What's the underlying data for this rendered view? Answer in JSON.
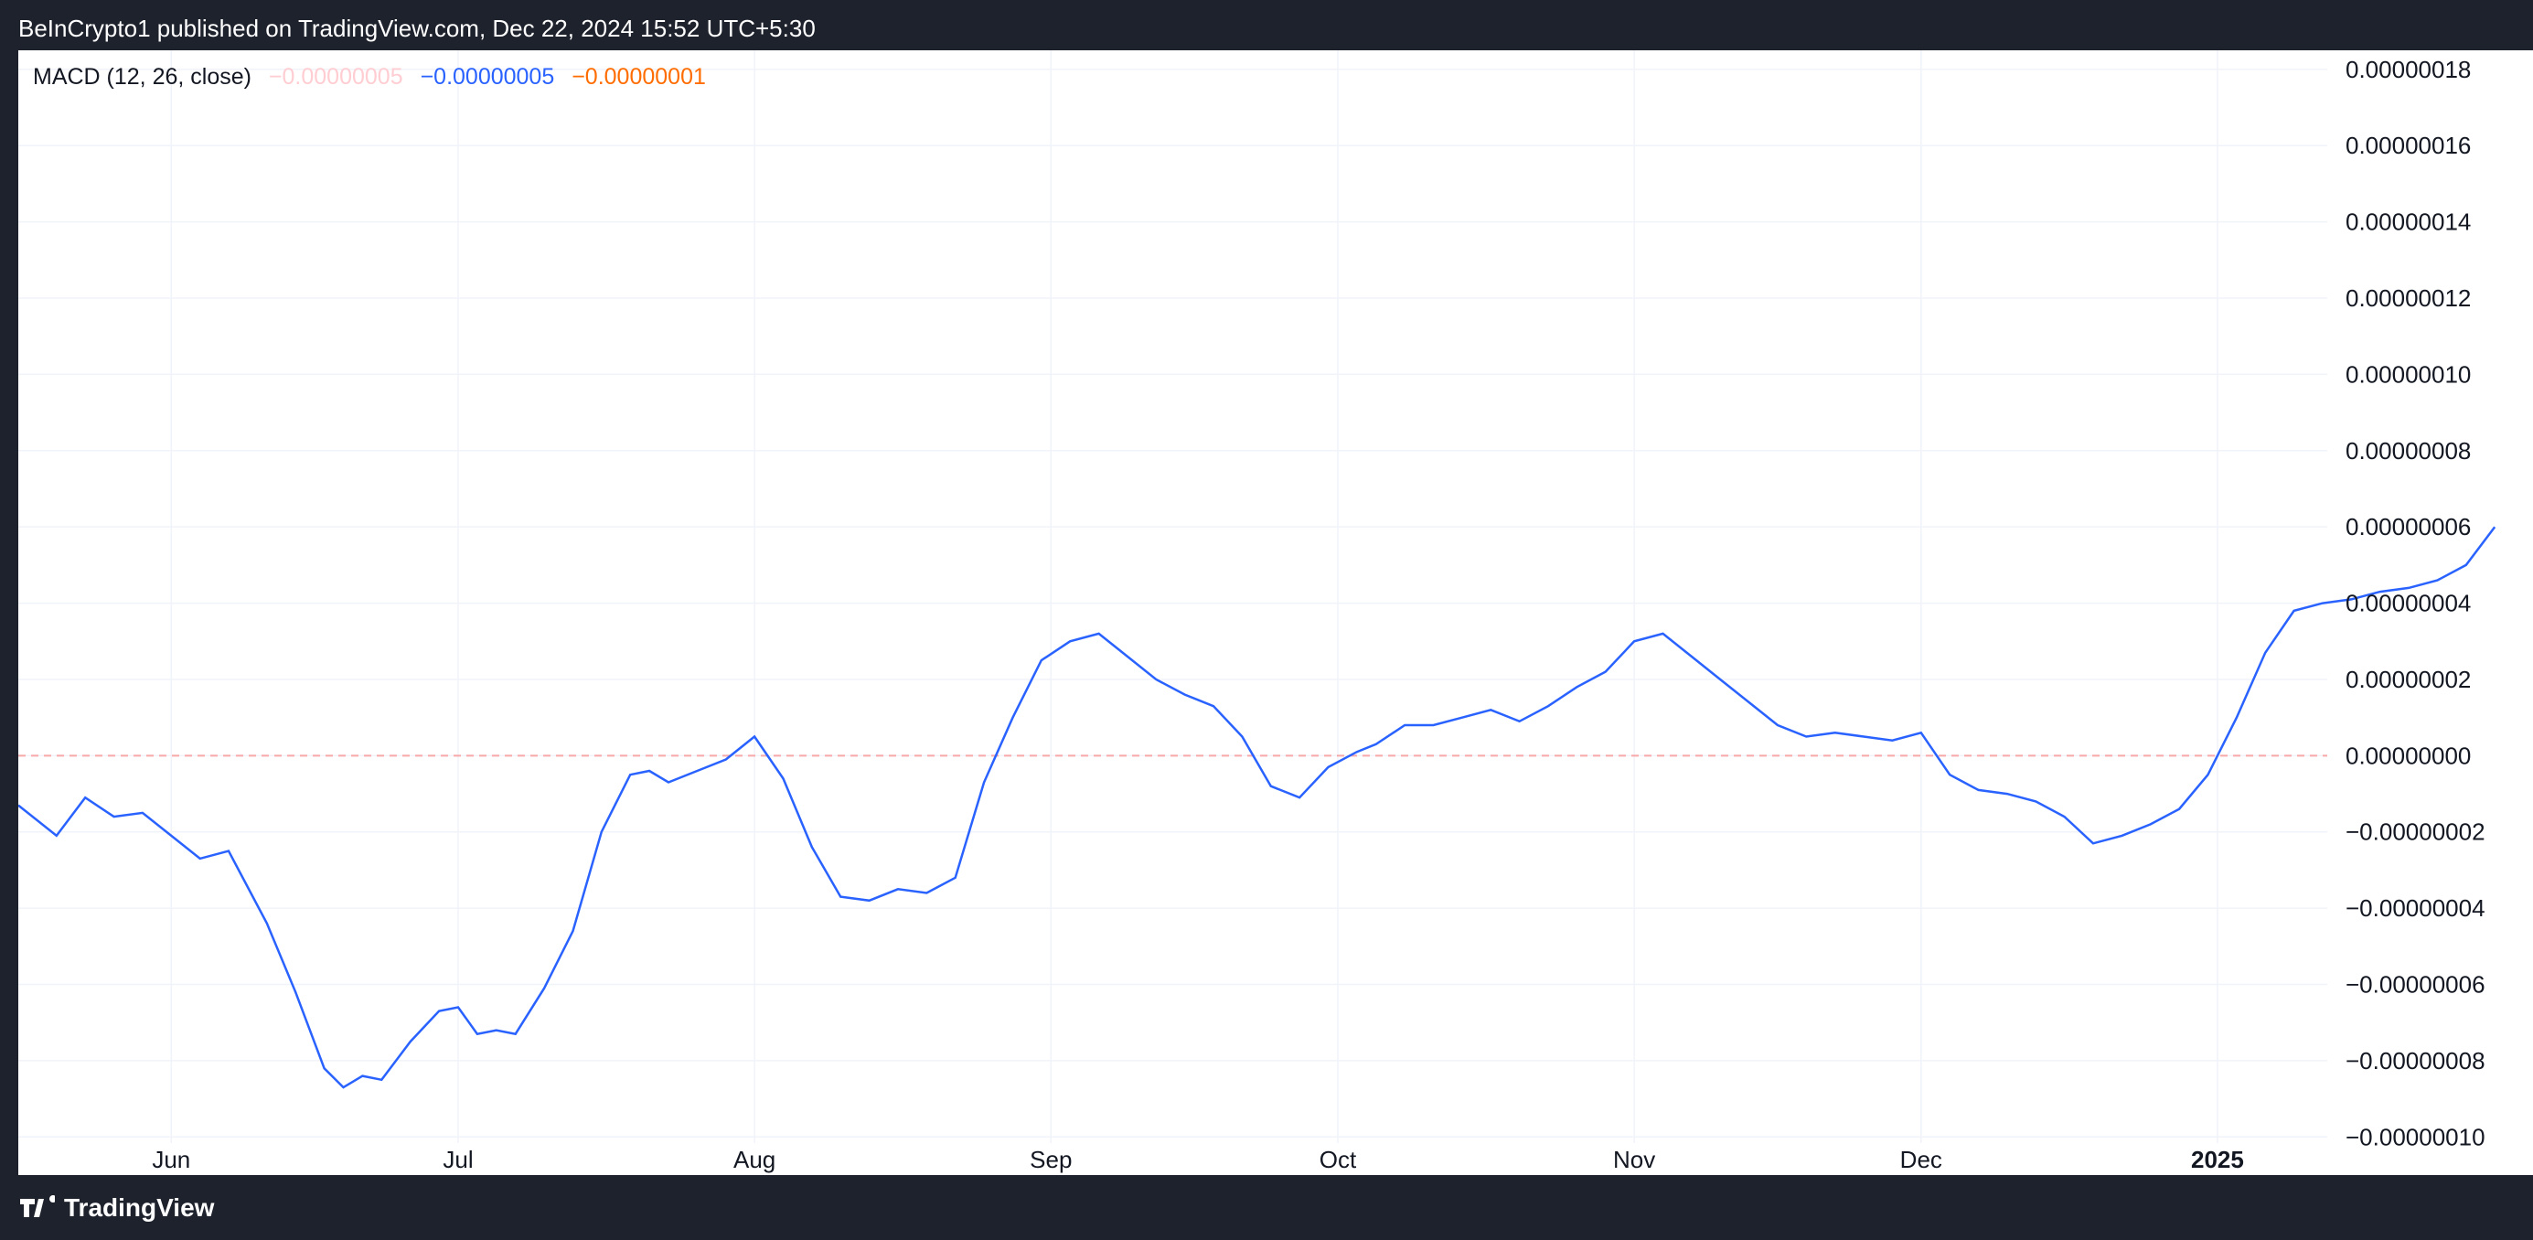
{
  "header": {
    "publisher_text": "BeInCrypto1 published on TradingView.com, Dec 22, 2024 15:52 UTC+5:30"
  },
  "legend": {
    "indicator": "MACD (12, 26, close)",
    "histogram_value": "−0.00000005",
    "macd_value": "−0.00000005",
    "signal_value": "−0.00000001"
  },
  "footer": {
    "brand": "TradingView"
  },
  "colors": {
    "macd_line": "#2962ff",
    "signal_line": "#ff6d00",
    "hist_pos_strong": "#26a69a",
    "hist_pos_weak": "#b2dfdb",
    "hist_neg_strong": "#ff5252",
    "hist_neg_weak": "#ffcdd2"
  },
  "chart_data": {
    "type": "line",
    "title": "MACD (12, 26, close)",
    "ylim": [
      -1.1e-07,
      1.85e-07
    ],
    "y_ticks": [
      {
        "value": 1.8e-07,
        "label": "0.00000018"
      },
      {
        "value": 1.6e-07,
        "label": "0.00000016"
      },
      {
        "value": 1.4e-07,
        "label": "0.00000014"
      },
      {
        "value": 1.2e-07,
        "label": "0.00000012"
      },
      {
        "value": 1e-07,
        "label": "0.00000010"
      },
      {
        "value": 8e-08,
        "label": "0.00000008"
      },
      {
        "value": 6e-08,
        "label": "0.00000006"
      },
      {
        "value": 4e-08,
        "label": "0.00000004"
      },
      {
        "value": 2e-08,
        "label": "0.00000002"
      },
      {
        "value": 0.0,
        "label": "0.00000000"
      },
      {
        "value": -2e-08,
        "label": "−0.00000002"
      },
      {
        "value": -4e-08,
        "label": "−0.00000004"
      },
      {
        "value": -6e-08,
        "label": "−0.00000006"
      },
      {
        "value": -8e-08,
        "label": "−0.00000008"
      },
      {
        "value": -1e-07,
        "label": "−0.00000010"
      }
    ],
    "x_ticks": [
      {
        "date": "2024-06-01",
        "label": "Jun"
      },
      {
        "date": "2024-07-01",
        "label": "Jul"
      },
      {
        "date": "2024-08-01",
        "label": "Aug"
      },
      {
        "date": "2024-09-01",
        "label": "Sep"
      },
      {
        "date": "2024-10-01",
        "label": "Oct"
      },
      {
        "date": "2024-11-01",
        "label": "Nov"
      },
      {
        "date": "2024-12-01",
        "label": "Dec"
      },
      {
        "date": "2025-01-01",
        "label": "2025"
      }
    ],
    "x_range": [
      "2024-05-16",
      "2025-02-03"
    ],
    "series": [
      {
        "name": "MACD",
        "points": [
          [
            "2024-05-16",
            -0.013
          ],
          [
            "2024-05-20",
            -0.021
          ],
          [
            "2024-05-23",
            -0.011
          ],
          [
            "2024-05-26",
            -0.016
          ],
          [
            "2024-05-29",
            -0.015
          ],
          [
            "2024-06-01",
            -0.021
          ],
          [
            "2024-06-04",
            -0.027
          ],
          [
            "2024-06-07",
            -0.025
          ],
          [
            "2024-06-11",
            -0.044
          ],
          [
            "2024-06-14",
            -0.062
          ],
          [
            "2024-06-17",
            -0.082
          ],
          [
            "2024-06-19",
            -0.087
          ],
          [
            "2024-06-21",
            -0.084
          ],
          [
            "2024-06-23",
            -0.085
          ],
          [
            "2024-06-26",
            -0.075
          ],
          [
            "2024-06-29",
            -0.067
          ],
          [
            "2024-07-01",
            -0.066
          ],
          [
            "2024-07-03",
            -0.073
          ],
          [
            "2024-07-05",
            -0.072
          ],
          [
            "2024-07-07",
            -0.073
          ],
          [
            "2024-07-10",
            -0.061
          ],
          [
            "2024-07-13",
            -0.046
          ],
          [
            "2024-07-16",
            -0.02
          ],
          [
            "2024-07-19",
            -0.005
          ],
          [
            "2024-07-21",
            -0.004
          ],
          [
            "2024-07-23",
            -0.007
          ],
          [
            "2024-07-26",
            -0.004
          ],
          [
            "2024-07-29",
            -0.001
          ],
          [
            "2024-08-01",
            0.005
          ],
          [
            "2024-08-04",
            -0.006
          ],
          [
            "2024-08-07",
            -0.024
          ],
          [
            "2024-08-10",
            -0.037
          ],
          [
            "2024-08-13",
            -0.038
          ],
          [
            "2024-08-16",
            -0.035
          ],
          [
            "2024-08-19",
            -0.036
          ],
          [
            "2024-08-22",
            -0.032
          ],
          [
            "2024-08-25",
            -0.007
          ],
          [
            "2024-08-28",
            0.01
          ],
          [
            "2024-08-31",
            0.025
          ],
          [
            "2024-09-03",
            0.03
          ],
          [
            "2024-09-06",
            0.032
          ],
          [
            "2024-09-09",
            0.026
          ],
          [
            "2024-09-12",
            0.02
          ],
          [
            "2024-09-15",
            0.016
          ],
          [
            "2024-09-18",
            0.013
          ],
          [
            "2024-09-21",
            0.005
          ],
          [
            "2024-09-24",
            -0.008
          ],
          [
            "2024-09-27",
            -0.011
          ],
          [
            "2024-09-30",
            -0.003
          ],
          [
            "2024-10-03",
            0.001
          ],
          [
            "2024-10-05",
            0.003
          ],
          [
            "2024-10-08",
            0.008
          ],
          [
            "2024-10-11",
            0.008
          ],
          [
            "2024-10-14",
            0.01
          ],
          [
            "2024-10-17",
            0.012
          ],
          [
            "2024-10-20",
            0.009
          ],
          [
            "2024-10-23",
            0.013
          ],
          [
            "2024-10-26",
            0.018
          ],
          [
            "2024-10-29",
            0.022
          ],
          [
            "2024-11-01",
            0.03
          ],
          [
            "2024-11-04",
            0.032
          ],
          [
            "2024-11-07",
            0.026
          ],
          [
            "2024-11-10",
            0.02
          ],
          [
            "2024-11-13",
            0.014
          ],
          [
            "2024-11-16",
            0.008
          ],
          [
            "2024-11-19",
            0.005
          ],
          [
            "2024-11-22",
            0.006
          ],
          [
            "2024-11-25",
            0.005
          ],
          [
            "2024-11-28",
            0.004
          ],
          [
            "2024-12-01",
            0.006
          ],
          [
            "2024-12-04",
            -0.005
          ],
          [
            "2024-12-07",
            -0.009
          ],
          [
            "2024-12-10",
            -0.01
          ],
          [
            "2024-12-13",
            -0.012
          ],
          [
            "2024-12-16",
            -0.016
          ],
          [
            "2024-12-19",
            -0.023
          ],
          [
            "2024-12-22",
            -0.021
          ],
          [
            "2024-12-25",
            -0.018
          ],
          [
            "2024-12-28",
            -0.014
          ],
          [
            "2024-12-31",
            -0.005
          ],
          [
            "2025-01-03",
            0.01
          ],
          [
            "2025-01-06",
            0.027
          ],
          [
            "2025-01-09",
            0.038
          ],
          [
            "2025-01-12",
            0.04
          ],
          [
            "2025-01-15",
            0.041
          ],
          [
            "2025-01-18",
            0.043
          ],
          [
            "2025-01-21",
            0.044
          ],
          [
            "2025-01-24",
            0.046
          ],
          [
            "2025-01-27",
            0.05
          ],
          [
            "2025-01-30",
            0.06
          ]
        ]
      }
    ]
  }
}
